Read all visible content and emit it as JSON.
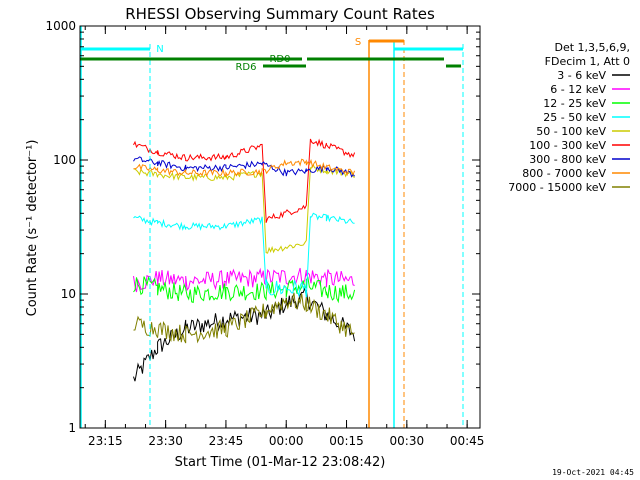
{
  "chart_data": {
    "type": "line",
    "title": "RHESSI Observing Summary Count Rates",
    "xlabel": "Start Time (01-Mar-12 23:08:42)",
    "ylabel": "Count Rate (s⁻¹ detector⁻¹)",
    "y_scale": "log",
    "ylim": [
      1,
      1000
    ],
    "xlim": [
      "23:08:42",
      "00:48:12"
    ],
    "x_ticks": [
      "23:15",
      "23:30",
      "23:45",
      "00:00",
      "00:15",
      "00:30",
      "00:45"
    ],
    "y_ticks": [
      "1",
      "10",
      "100",
      "1000"
    ],
    "legend_title": [
      "Det 1,3,5,6,9,",
      "FDecim 1, Att 0"
    ],
    "legend_position": "right",
    "series": [
      {
        "name": "3 - 6 keV",
        "color": "#000000",
        "x": [
          "23:22",
          "23:28",
          "23:35",
          "23:45",
          "23:55",
          "00:00",
          "00:05",
          "00:10",
          "00:17"
        ],
        "values": [
          2.3,
          4.0,
          5.5,
          6.5,
          7.0,
          8.5,
          9.5,
          7.0,
          5.0
        ]
      },
      {
        "name": "6 - 12 keV",
        "color": "#ff00ff",
        "x": [
          "23:22",
          "23:28",
          "23:35",
          "23:45",
          "23:55",
          "00:00",
          "00:05",
          "00:10",
          "00:17"
        ],
        "values": [
          12.0,
          13.0,
          12.5,
          12.8,
          13.2,
          13.5,
          13.8,
          13.0,
          12.5
        ]
      },
      {
        "name": "12 - 25 keV",
        "color": "#00ff00",
        "x": [
          "23:22",
          "23:28",
          "23:35",
          "23:45",
          "23:55",
          "00:00",
          "00:05",
          "00:10",
          "00:17"
        ],
        "values": [
          12.0,
          11.0,
          10.0,
          10.5,
          10.5,
          11.0,
          11.5,
          10.5,
          10.0
        ]
      },
      {
        "name": "25 - 50 keV",
        "color": "#00ffff",
        "x": [
          "23:22",
          "23:28",
          "23:35",
          "23:45",
          "23:54",
          "23:55",
          "00:05",
          "00:06",
          "00:10",
          "00:17"
        ],
        "values": [
          37,
          34,
          32,
          32,
          36,
          11,
          11,
          38,
          37,
          34
        ]
      },
      {
        "name": "50 - 100 keV",
        "color": "#cccc00",
        "x": [
          "23:22",
          "23:28",
          "23:35",
          "23:45",
          "23:54",
          "23:55",
          "00:05",
          "00:06",
          "00:10",
          "00:17"
        ],
        "values": [
          82,
          78,
          74,
          74,
          80,
          21,
          24,
          88,
          84,
          78
        ]
      },
      {
        "name": "100 - 300 keV",
        "color": "#ff0000",
        "x": [
          "23:22",
          "23:28",
          "23:35",
          "23:45",
          "23:54",
          "23:55",
          "00:05",
          "00:06",
          "00:10",
          "00:17"
        ],
        "values": [
          132,
          115,
          104,
          105,
          128,
          36,
          45,
          142,
          128,
          108
        ]
      },
      {
        "name": "300 - 800 keV",
        "color": "#0000cc",
        "x": [
          "23:22",
          "23:28",
          "23:35",
          "23:45",
          "23:54",
          "00:00",
          "00:05",
          "00:10",
          "00:17"
        ],
        "values": [
          102,
          95,
          87,
          88,
          94,
          80,
          83,
          88,
          78
        ]
      },
      {
        "name": "800 - 7000 keV",
        "color": "#ff8800",
        "x": [
          "23:22",
          "23:28",
          "23:35",
          "23:45",
          "23:54",
          "00:00",
          "00:05",
          "00:10",
          "00:17"
        ],
        "values": [
          89,
          84,
          80,
          80,
          82,
          95,
          97,
          88,
          80
        ]
      },
      {
        "name": "7000 - 15000 keV",
        "color": "#808000",
        "x": [
          "23:22",
          "23:28",
          "23:35",
          "23:45",
          "23:55",
          "00:00",
          "00:05",
          "00:10",
          "00:17"
        ],
        "values": [
          6.0,
          5.5,
          5.0,
          5.5,
          7.5,
          9.0,
          8.5,
          7.0,
          5.0
        ]
      }
    ],
    "flags": [
      {
        "label": "N",
        "color": "#00ffff"
      },
      {
        "label": "RD0",
        "color": "#008000"
      },
      {
        "label": "RD6",
        "color": "#008000"
      },
      {
        "label": "S",
        "color": "#ff8800"
      }
    ]
  },
  "footer": "19-Oct-2021 04:45"
}
